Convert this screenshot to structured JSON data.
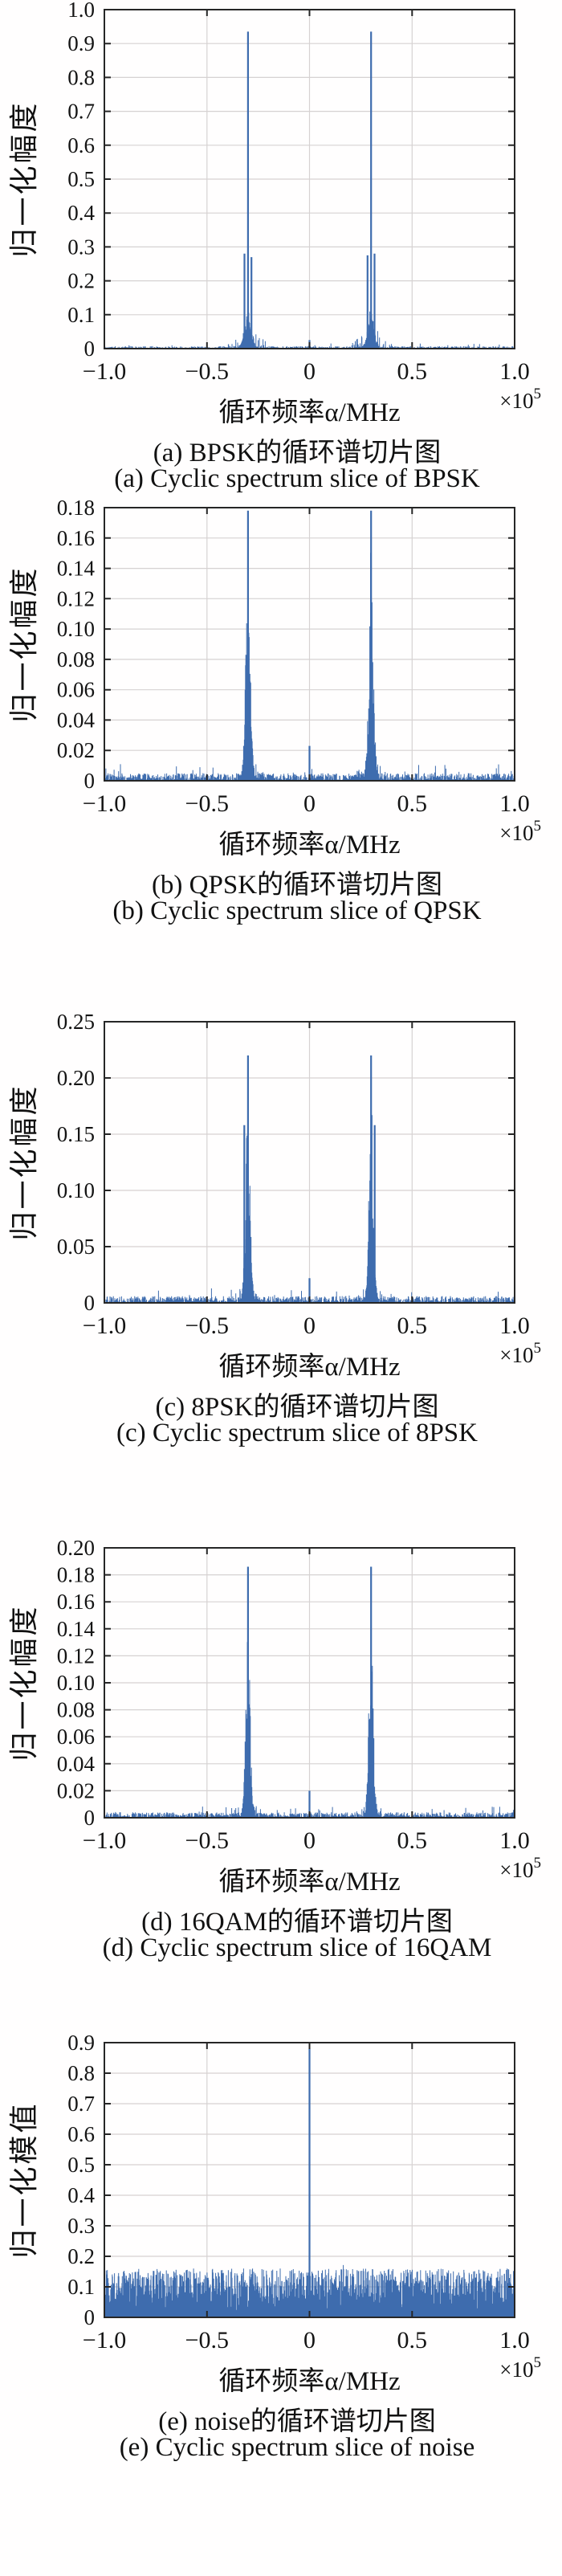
{
  "shared": {
    "xlabel": "循环频率α/MHz",
    "x_scale_mantissa": "×10",
    "x_scale_exponent": "5",
    "line_color": "#3e6cae",
    "grid_color": "#d6d2d2",
    "frame_color": "#262626",
    "text_color": "#141414"
  },
  "chart_data": [
    {
      "type": "line",
      "modulation": "BPSK",
      "ylabel": "归一化幅度",
      "caption_zh": "(a) BPSK的循环谱切片图",
      "caption_en": "(a) Cyclic spectrum slice of BPSK",
      "xlabel": "循环频率α/MHz",
      "x_scale_factor": "×10^5",
      "xlim": [
        -1.0,
        1.0
      ],
      "xticks": [
        -1.0,
        -0.5,
        0,
        0.5,
        1.0
      ],
      "xtick_labels": [
        "−1.0",
        "−0.5",
        "0",
        "0.5",
        "1.0"
      ],
      "ylim": [
        0,
        1.0
      ],
      "yticks": [
        0,
        0.1,
        0.2,
        0.3,
        0.4,
        0.5,
        0.6,
        0.7,
        0.8,
        0.9,
        1.0
      ],
      "ytick_labels": [
        "0",
        "0.1",
        "0.2",
        "0.3",
        "0.4",
        "0.5",
        "0.6",
        "0.7",
        "0.8",
        "0.9",
        "1.0"
      ],
      "grid": true,
      "seed": 11,
      "signal": {
        "noise_floor": 0.007,
        "clusters": [
          {
            "center": -0.3,
            "width": 0.02,
            "peak_height": 0.13
          },
          {
            "center": 0.3,
            "width": 0.02,
            "peak_height": 0.13
          }
        ],
        "scatter": [
          {
            "center": -0.3,
            "width": 0.06,
            "height": 0.06
          },
          {
            "center": 0.3,
            "width": 0.06,
            "height": 0.06
          }
        ],
        "spikes": [
          {
            "x": -0.3,
            "height": 0.935
          },
          {
            "x": 0.3,
            "height": 0.935
          },
          {
            "x": -0.317,
            "height": 0.28
          },
          {
            "x": -0.283,
            "height": 0.27
          },
          {
            "x": 0.283,
            "height": 0.275
          },
          {
            "x": 0.317,
            "height": 0.28
          },
          {
            "x": 0,
            "height": 0.025
          }
        ]
      }
    },
    {
      "type": "line",
      "modulation": "QPSK",
      "ylabel": "归一化幅度",
      "caption_zh": "(b) QPSK的循环谱切片图",
      "caption_en": "(b) Cyclic spectrum slice of QPSK",
      "xlabel": "循环频率α/MHz",
      "x_scale_factor": "×10^5",
      "xlim": [
        -1.0,
        1.0
      ],
      "xticks": [
        -1.0,
        -0.5,
        0,
        0.5,
        1.0
      ],
      "xtick_labels": [
        "−1.0",
        "−0.5",
        "0",
        "0.5",
        "1.0"
      ],
      "ylim": [
        0,
        0.18
      ],
      "yticks": [
        0,
        0.02,
        0.04,
        0.06,
        0.08,
        0.1,
        0.12,
        0.14,
        0.16,
        0.18
      ],
      "ytick_labels": [
        "0",
        "0.02",
        "0.04",
        "0.06",
        "0.08",
        "0.10",
        "0.12",
        "0.14",
        "0.16",
        "0.18"
      ],
      "grid": true,
      "seed": 23,
      "signal": {
        "noise_floor": 0.005,
        "clusters": [
          {
            "center": -0.3,
            "width": 0.014,
            "peak_height": 0.172
          },
          {
            "center": 0.3,
            "width": 0.014,
            "peak_height": 0.172
          }
        ],
        "scatter": [
          {
            "center": -0.3,
            "width": 0.055,
            "height": 0.014
          },
          {
            "center": 0.3,
            "width": 0.055,
            "height": 0.014
          }
        ],
        "spikes": [
          {
            "x": -0.3,
            "height": 0.178
          },
          {
            "x": 0.3,
            "height": 0.178
          },
          {
            "x": 0,
            "height": 0.023
          }
        ]
      }
    },
    {
      "type": "line",
      "modulation": "8PSK",
      "ylabel": "归一化幅度",
      "caption_zh": "(c) 8PSK的循环谱切片图",
      "caption_en": "(c) Cyclic spectrum slice of 8PSK",
      "xlabel": "循环频率α/MHz",
      "x_scale_factor": "×10^5",
      "xlim": [
        -1.0,
        1.0
      ],
      "xticks": [
        -1.0,
        -0.5,
        0,
        0.5,
        1.0
      ],
      "xtick_labels": [
        "−1.0",
        "−0.5",
        "0",
        "0.5",
        "1.0"
      ],
      "ylim": [
        0,
        0.25
      ],
      "yticks": [
        0,
        0.05,
        0.1,
        0.15,
        0.2,
        0.25
      ],
      "ytick_labels": [
        "0",
        "0.05",
        "0.10",
        "0.15",
        "0.20",
        "0.25"
      ],
      "grid": true,
      "seed": 37,
      "signal": {
        "noise_floor": 0.006,
        "clusters": [
          {
            "center": -0.3,
            "width": 0.014,
            "peak_height": 0.205
          },
          {
            "center": 0.3,
            "width": 0.014,
            "peak_height": 0.205
          }
        ],
        "scatter": [
          {
            "center": -0.3,
            "width": 0.055,
            "height": 0.016
          },
          {
            "center": 0.3,
            "width": 0.055,
            "height": 0.016
          }
        ],
        "spikes": [
          {
            "x": -0.3,
            "height": 0.22
          },
          {
            "x": -0.318,
            "height": 0.158
          },
          {
            "x": 0.3,
            "height": 0.22
          },
          {
            "x": 0.318,
            "height": 0.158
          },
          {
            "x": 0,
            "height": 0.022
          }
        ]
      }
    },
    {
      "type": "line",
      "modulation": "16QAM",
      "ylabel": "归一化幅度",
      "caption_zh": "(d) 16QAM的循环谱切片图",
      "caption_en": "(d) Cyclic spectrum slice of 16QAM",
      "xlabel": "循环频率α/MHz",
      "x_scale_factor": "×10^5",
      "xlim": [
        -1.0,
        1.0
      ],
      "xticks": [
        -1.0,
        -0.5,
        0,
        0.5,
        1.0
      ],
      "xtick_labels": [
        "−1.0",
        "−0.5",
        "0",
        "0.5",
        "1.0"
      ],
      "ylim": [
        0,
        0.2
      ],
      "yticks": [
        0,
        0.02,
        0.04,
        0.06,
        0.08,
        0.1,
        0.12,
        0.14,
        0.16,
        0.18,
        0.2
      ],
      "ytick_labels": [
        "0",
        "0.02",
        "0.04",
        "0.06",
        "0.08",
        "0.10",
        "0.12",
        "0.14",
        "0.16",
        "0.18",
        "0.20"
      ],
      "grid": true,
      "seed": 53,
      "signal": {
        "noise_floor": 0.004,
        "clusters": [
          {
            "center": -0.3,
            "width": 0.013,
            "peak_height": 0.18
          },
          {
            "center": 0.3,
            "width": 0.013,
            "peak_height": 0.18
          }
        ],
        "scatter": [
          {
            "center": -0.3,
            "width": 0.055,
            "height": 0.012
          },
          {
            "center": 0.3,
            "width": 0.055,
            "height": 0.012
          }
        ],
        "spikes": [
          {
            "x": -0.3,
            "height": 0.186
          },
          {
            "x": 0.3,
            "height": 0.186
          },
          {
            "x": 0,
            "height": 0.02
          }
        ]
      }
    },
    {
      "type": "line",
      "modulation": "noise",
      "ylabel": "归一化模值",
      "caption_zh": "(e) noise的循环谱切片图",
      "caption_en": "(e) Cyclic spectrum slice of noise",
      "xlabel": "循环频率α/MHz",
      "x_scale_factor": "×10^5",
      "xlim": [
        -1.0,
        1.0
      ],
      "xticks": [
        -1.0,
        -0.5,
        0,
        0.5,
        1.0
      ],
      "xtick_labels": [
        "−1.0",
        "−0.5",
        "0",
        "0.5",
        "1.0"
      ],
      "ylim": [
        0,
        0.9
      ],
      "yticks": [
        0,
        0.1,
        0.2,
        0.3,
        0.4,
        0.5,
        0.6,
        0.7,
        0.8,
        0.9
      ],
      "ytick_labels": [
        "0",
        "0.1",
        "0.2",
        "0.3",
        "0.4",
        "0.5",
        "0.6",
        "0.7",
        "0.8",
        "0.9"
      ],
      "grid": true,
      "seed": 71,
      "signal": {
        "band": {
          "base": 0.02,
          "range": 0.14,
          "pow": 0.8
        },
        "spikes": [
          {
            "x": 0,
            "height": 0.88
          }
        ]
      }
    }
  ]
}
